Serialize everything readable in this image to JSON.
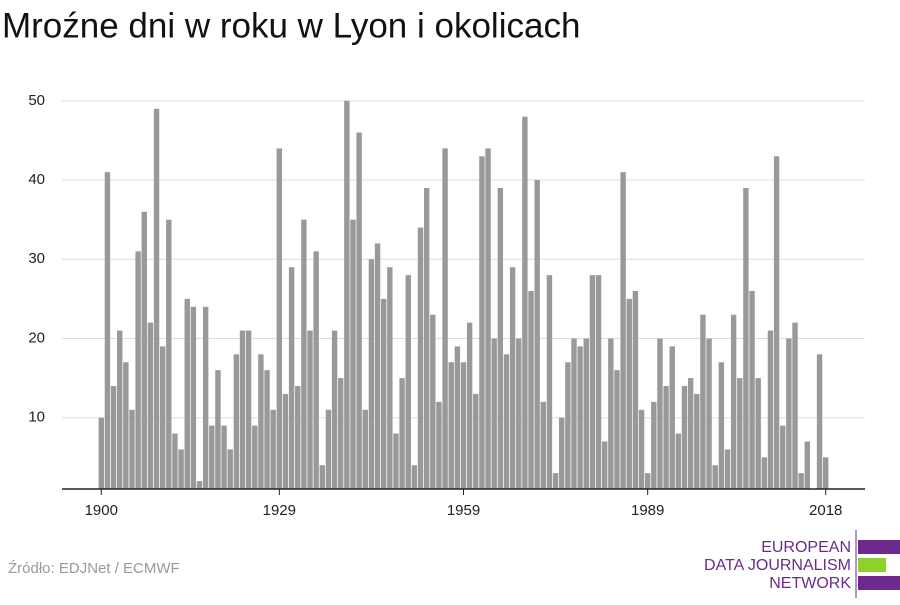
{
  "chart_data": {
    "type": "bar",
    "title": "Mroźne dni w roku w Lyon i okolicach",
    "x": [
      1900,
      1901,
      1902,
      1903,
      1904,
      1905,
      1906,
      1907,
      1908,
      1909,
      1910,
      1911,
      1912,
      1913,
      1914,
      1915,
      1916,
      1917,
      1918,
      1919,
      1920,
      1921,
      1922,
      1923,
      1924,
      1925,
      1926,
      1927,
      1928,
      1929,
      1930,
      1931,
      1932,
      1933,
      1934,
      1935,
      1936,
      1937,
      1938,
      1939,
      1940,
      1941,
      1942,
      1943,
      1944,
      1945,
      1946,
      1947,
      1948,
      1949,
      1950,
      1951,
      1952,
      1953,
      1954,
      1955,
      1956,
      1957,
      1958,
      1959,
      1960,
      1961,
      1962,
      1963,
      1964,
      1965,
      1966,
      1967,
      1968,
      1969,
      1970,
      1971,
      1972,
      1973,
      1974,
      1975,
      1976,
      1977,
      1978,
      1979,
      1980,
      1981,
      1982,
      1983,
      1984,
      1985,
      1986,
      1987,
      1988,
      1989,
      1990,
      1991,
      1992,
      1993,
      1994,
      1995,
      1996,
      1997,
      1998,
      1999,
      2000,
      2001,
      2002,
      2003,
      2004,
      2005,
      2006,
      2007,
      2008,
      2009,
      2010,
      2011,
      2012,
      2013,
      2014,
      2015,
      2016,
      2017,
      2018
    ],
    "values": [
      10,
      41,
      14,
      21,
      17,
      11,
      31,
      36,
      22,
      49,
      19,
      35,
      8,
      6,
      25,
      24,
      2,
      24,
      9,
      16,
      9,
      6,
      18,
      21,
      21,
      9,
      18,
      16,
      11,
      44,
      13,
      29,
      14,
      35,
      21,
      31,
      4,
      11,
      21,
      15,
      50,
      35,
      46,
      11,
      30,
      32,
      25,
      29,
      8,
      15,
      28,
      4,
      34,
      39,
      23,
      12,
      44,
      17,
      19,
      17,
      22,
      13,
      43,
      44,
      20,
      39,
      18,
      29,
      20,
      48,
      26,
      40,
      12,
      28,
      3,
      10,
      17,
      20,
      19,
      20,
      28,
      28,
      7,
      20,
      16,
      41,
      25,
      26,
      11,
      3,
      12,
      20,
      14,
      19,
      8,
      14,
      15,
      13,
      23,
      20,
      4,
      17,
      6,
      23,
      15,
      39,
      26,
      15,
      5,
      21,
      43,
      9,
      20,
      22,
      3,
      7,
      null,
      18,
      5
    ],
    "color": "#999999",
    "xlim": [
      1893.6,
      2024.4
    ],
    "xticks": [
      1900,
      1929,
      1959,
      1989,
      2018
    ],
    "ylim": [
      1,
      52
    ],
    "yticks": [
      10,
      20,
      30,
      40,
      50
    ],
    "grid": true,
    "source": "Źródło: EDJNet / ECMWF"
  },
  "logo": {
    "lines": [
      "EUROPEAN",
      "DATA JOURNALISM",
      "NETWORK"
    ]
  }
}
